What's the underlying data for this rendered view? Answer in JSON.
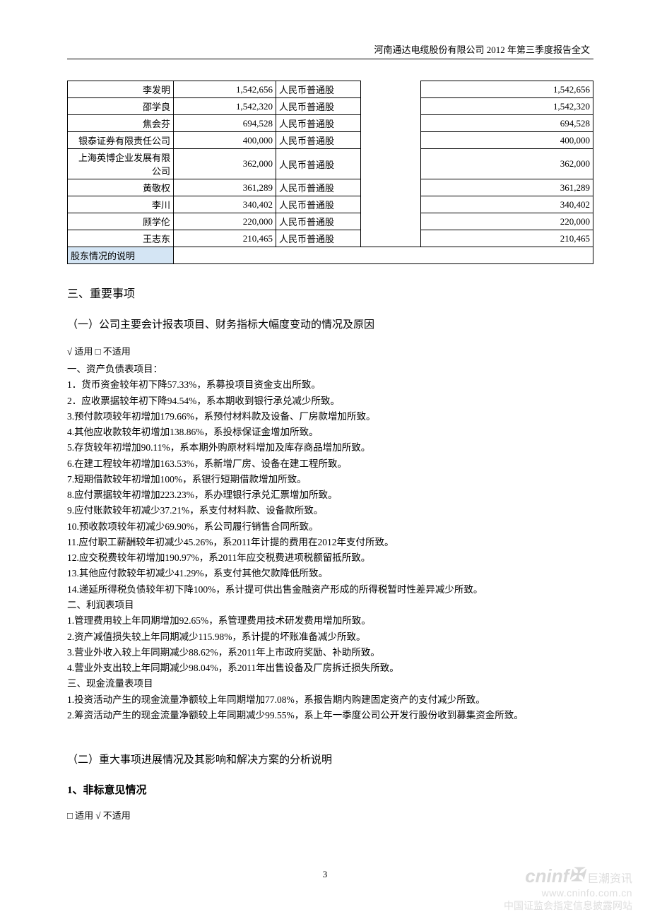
{
  "header": {
    "title": "河南通达电缆股份有限公司 2012 年第三季度报告全文"
  },
  "table": {
    "rows": [
      {
        "name": "李发明",
        "num1": "1,542,656",
        "type": "人民币普通股",
        "num2": "1,542,656"
      },
      {
        "name": "邵学良",
        "num1": "1,542,320",
        "type": "人民币普通股",
        "num2": "1,542,320"
      },
      {
        "name": "焦会芬",
        "num1": "694,528",
        "type": "人民币普通股",
        "num2": "694,528"
      },
      {
        "name": "银泰证券有限责任公司",
        "num1": "400,000",
        "type": "人民币普通股",
        "num2": "400,000"
      },
      {
        "name": "上海英博企业发展有限公司",
        "num1": "362,000",
        "type": "人民币普通股",
        "num2": "362,000"
      },
      {
        "name": "黄敬权",
        "num1": "361,289",
        "type": "人民币普通股",
        "num2": "361,289"
      },
      {
        "name": "李川",
        "num1": "340,402",
        "type": "人民币普通股",
        "num2": "340,402"
      },
      {
        "name": "顾学伦",
        "num1": "220,000",
        "type": "人民币普通股",
        "num2": "220,000"
      },
      {
        "name": "王志东",
        "num1": "210,465",
        "type": "人民币普通股",
        "num2": "210,465"
      }
    ],
    "footer_label": "股东情况的说明"
  },
  "sections": {
    "s3_title": "三、重要事项",
    "s3_1_title": "（一）公司主要会计报表项目、财务指标大幅度变动的情况及原因",
    "s3_1_check": "√ 适用 □ 不适用",
    "s3_1_body": [
      "一、资产负债表项目：",
      "1．货币资金较年初下降57.33%，系募投项目资金支出所致。",
      "2．应收票据较年初下降94.54%，系本期收到银行承兑减少所致。",
      "3.预付款项较年初增加179.66%，系预付材料款及设备、厂房款增加所致。",
      "4.其他应收款较年初增加138.86%，系投标保证金增加所致。",
      "5.存货较年初增加90.11%，系本期外购原材料增加及库存商品增加所致。",
      "6.在建工程较年初增加163.53%，系新增厂房、设备在建工程所致。",
      "7.短期借款较年初增加100%，系银行短期借款增加所致。",
      "8.应付票据较年初增加223.23%，系办理银行承兑汇票增加所致。",
      "9.应付账款较年初减少37.21%，系支付材料款、设备款所致。",
      "10.预收款项较年初减少69.90%，系公司履行销售合同所致。",
      "11.应付职工薪酬较年初减少45.26%，系2011年计提的费用在2012年支付所致。",
      "12.应交税费较年初增加190.97%，系2011年应交税费进项税额留抵所致。",
      "13.其他应付款较年初减少41.29%，系支付其他欠款降低所致。",
      "14.递延所得税负债较年初下降100%，系计提可供出售金融资产形成的所得税暂时性差异减少所致。",
      "二、利润表项目",
      "1.管理费用较上年同期增加92.65%，系管理费用技术研发费用增加所致。",
      "2.资产减值损失较上年同期减少115.98%，系计提的坏账准备减少所致。",
      "3.营业外收入较上年同期减少88.62%，系2011年上市政府奖励、补助所致。",
      "4.营业外支出较上年同期减少98.04%，系2011年出售设备及厂房拆迁损失所致。",
      "三、现金流量表项目",
      "1.投资活动产生的现金流量净额较上年同期增加77.08%，系报告期内购建固定资产的支付减少所致。",
      "2.筹资活动产生的现金流量净额较上年同期减少99.55%，系上年一季度公司公开发行股份收到募集资金所致。"
    ],
    "s3_2_title": "（二）重大事项进展情况及其影响和解决方案的分析说明",
    "s3_2_1_title": "1、非标意见情况",
    "s3_2_1_check": "□ 适用 √ 不适用"
  },
  "page_number": "3",
  "watermark": {
    "logo": "cninf",
    "cn1": "巨潮资讯",
    "url": "www.cninfo.com.cn",
    "cn2": "中国证监会指定信息披露网站"
  }
}
